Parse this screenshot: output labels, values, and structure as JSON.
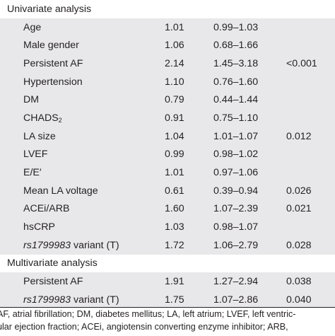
{
  "sections": {
    "univariate": "Univariate analysis",
    "multivariate": "Multivariate analysis"
  },
  "rows": [
    {
      "label": "Age",
      "or": "1.01",
      "ci": "0.99–1.03",
      "p": ""
    },
    {
      "label": "Male gender",
      "or": "1.06",
      "ci": "0.68–1.66",
      "p": ""
    },
    {
      "label": "Persistent AF",
      "or": "2.14",
      "ci": "1.45–3.18",
      "p": "<0.001"
    },
    {
      "label": "Hypertension",
      "or": "1.10",
      "ci": "0.76–1.60",
      "p": ""
    },
    {
      "label": "DM",
      "or": "0.79",
      "ci": "0.44–1.44",
      "p": ""
    },
    {
      "label": "CHADS",
      "label_sub": "2",
      "or": "0.91",
      "ci": "0.75–1.10",
      "p": ""
    },
    {
      "label": "LA size",
      "or": "1.04",
      "ci": "1.01–1.07",
      "p": "0.012"
    },
    {
      "label": "LVEF",
      "or": "0.99",
      "ci": "0.98–1.02",
      "p": ""
    },
    {
      "label": "E/E′",
      "or": "1.01",
      "ci": "0.97–1.06",
      "p": ""
    },
    {
      "label": "Mean LA voltage",
      "or": "0.61",
      "ci": "0.39–0.94",
      "p": "0.026"
    },
    {
      "label": "ACEi/ARB",
      "or": "1.60",
      "ci": "1.07–2.39",
      "p": "0.021"
    },
    {
      "label": "hsCRP",
      "or": "1.03",
      "ci": "0.98–1.07",
      "p": ""
    },
    {
      "label_italic": "rs1799983",
      "label": " variant (T)",
      "or": "1.72",
      "ci": "1.06–2.79",
      "p": "0.028"
    }
  ],
  "multi_rows": [
    {
      "label": "Persistent AF",
      "or": "1.91",
      "ci": "1.27–2.94",
      "p": "0.038"
    },
    {
      "label_italic": "rs1799983",
      "label": " variant (T)",
      "or": "1.75",
      "ci": "1.07–2.86",
      "p": "0.040"
    }
  ],
  "footnote": {
    "line1": "AF, atrial fibrillation; DM, diabetes mellitus; LA, left atrium; LVEF, left ventric-",
    "line2": "ular ejection fraction; ACEi, angiotensin converting enzyme inhibitor; ARB,"
  }
}
